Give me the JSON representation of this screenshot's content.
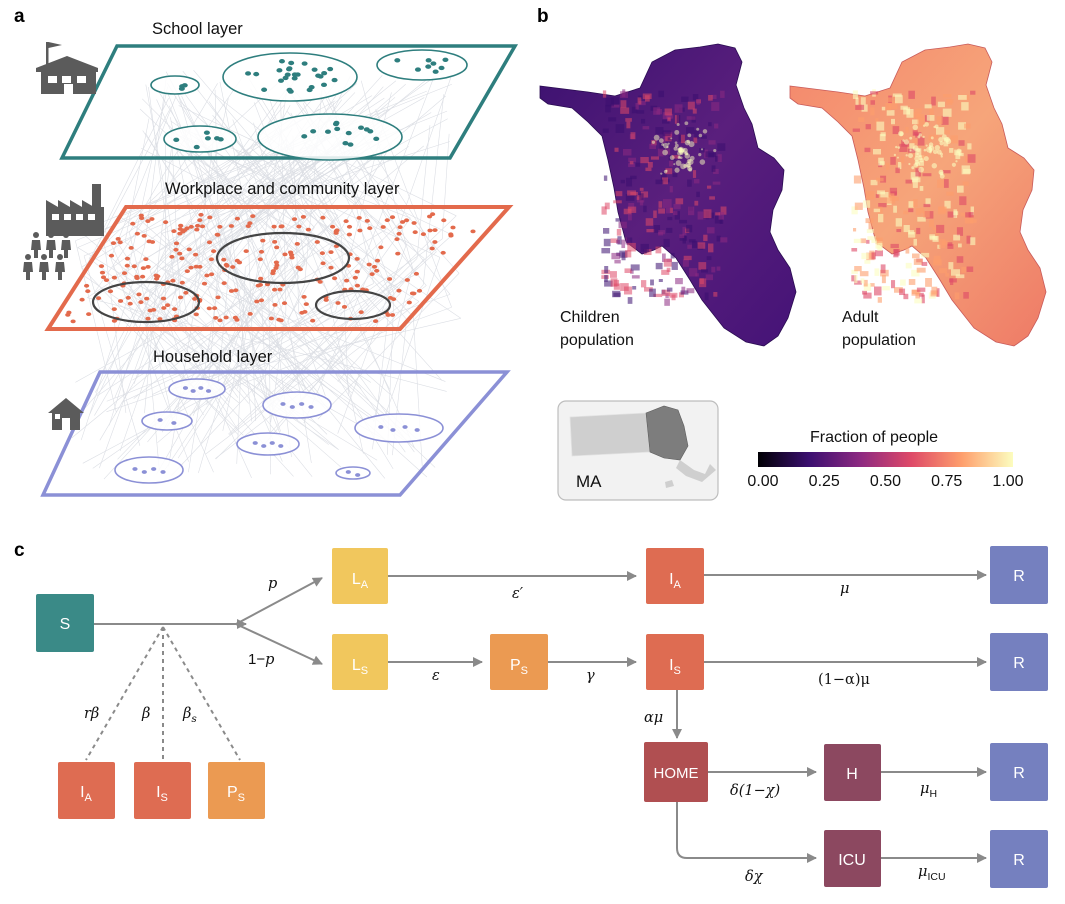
{
  "panels": {
    "a": "a",
    "b": "b",
    "c": "c"
  },
  "panel_a": {
    "school_layer": "School layer",
    "workplace_layer": "Workplace and community layer",
    "household_layer": "Household layer",
    "colors": {
      "school": "#2e7e7e",
      "workplace": "#e36a4c",
      "household": "#8b90d6",
      "icon": "#5b5b5b"
    }
  },
  "panel_b": {
    "children_label_1": "Children",
    "children_label_2": "population",
    "adult_label_1": "Adult",
    "adult_label_2": "population",
    "inset_label": "MA",
    "colorbar_title": "Fraction of people",
    "colorbar_ticks": [
      "0.00",
      "0.25",
      "0.50",
      "0.75",
      "1.00"
    ],
    "colormap": [
      "#000004",
      "#3b0f70",
      "#8c2981",
      "#de4968",
      "#fe9f6d",
      "#fcfdbf"
    ]
  },
  "panel_c": {
    "colors": {
      "S": "#3a8a87",
      "L": "#f1c75d",
      "P": "#eb9a52",
      "I": "#de6c52",
      "HOME": "#b04f51",
      "H": "#8c4860",
      "R": "#7580bf"
    },
    "boxes": {
      "S": "S",
      "LA": "L",
      "LA_sub": "A",
      "LS": "L",
      "LS_sub": "S",
      "PS": "P",
      "PS_sub": "S",
      "IA": "I",
      "IA_sub": "A",
      "IS": "I",
      "IS_sub": "S",
      "HOME": "HOME",
      "H": "H",
      "ICU": "ICU",
      "R1": "R",
      "R2": "R",
      "R3": "R",
      "R4": "R",
      "src_IA": "I",
      "src_IA_sub": "A",
      "src_IS": "I",
      "src_IS_sub": "S",
      "src_PS": "P",
      "src_PS_sub": "S"
    },
    "rates": {
      "p": "p",
      "one_minus_p": "1−",
      "one_minus_p_var": "p",
      "eps_prime": "ε′",
      "mu": "μ",
      "eps": "ε",
      "gamma": "γ",
      "one_minus_alpha_mu": "(1−α)μ",
      "alpha_mu": "αμ",
      "delta_one_minus_chi": "δ(1−χ)",
      "mu_H": "μ",
      "mu_H_sub": "H",
      "delta_chi": "δχ",
      "mu_ICU": "μ",
      "mu_ICU_sub": "ICU",
      "r_beta": "rβ",
      "beta": "β",
      "beta_s": "β",
      "beta_s_sub": "s"
    }
  }
}
